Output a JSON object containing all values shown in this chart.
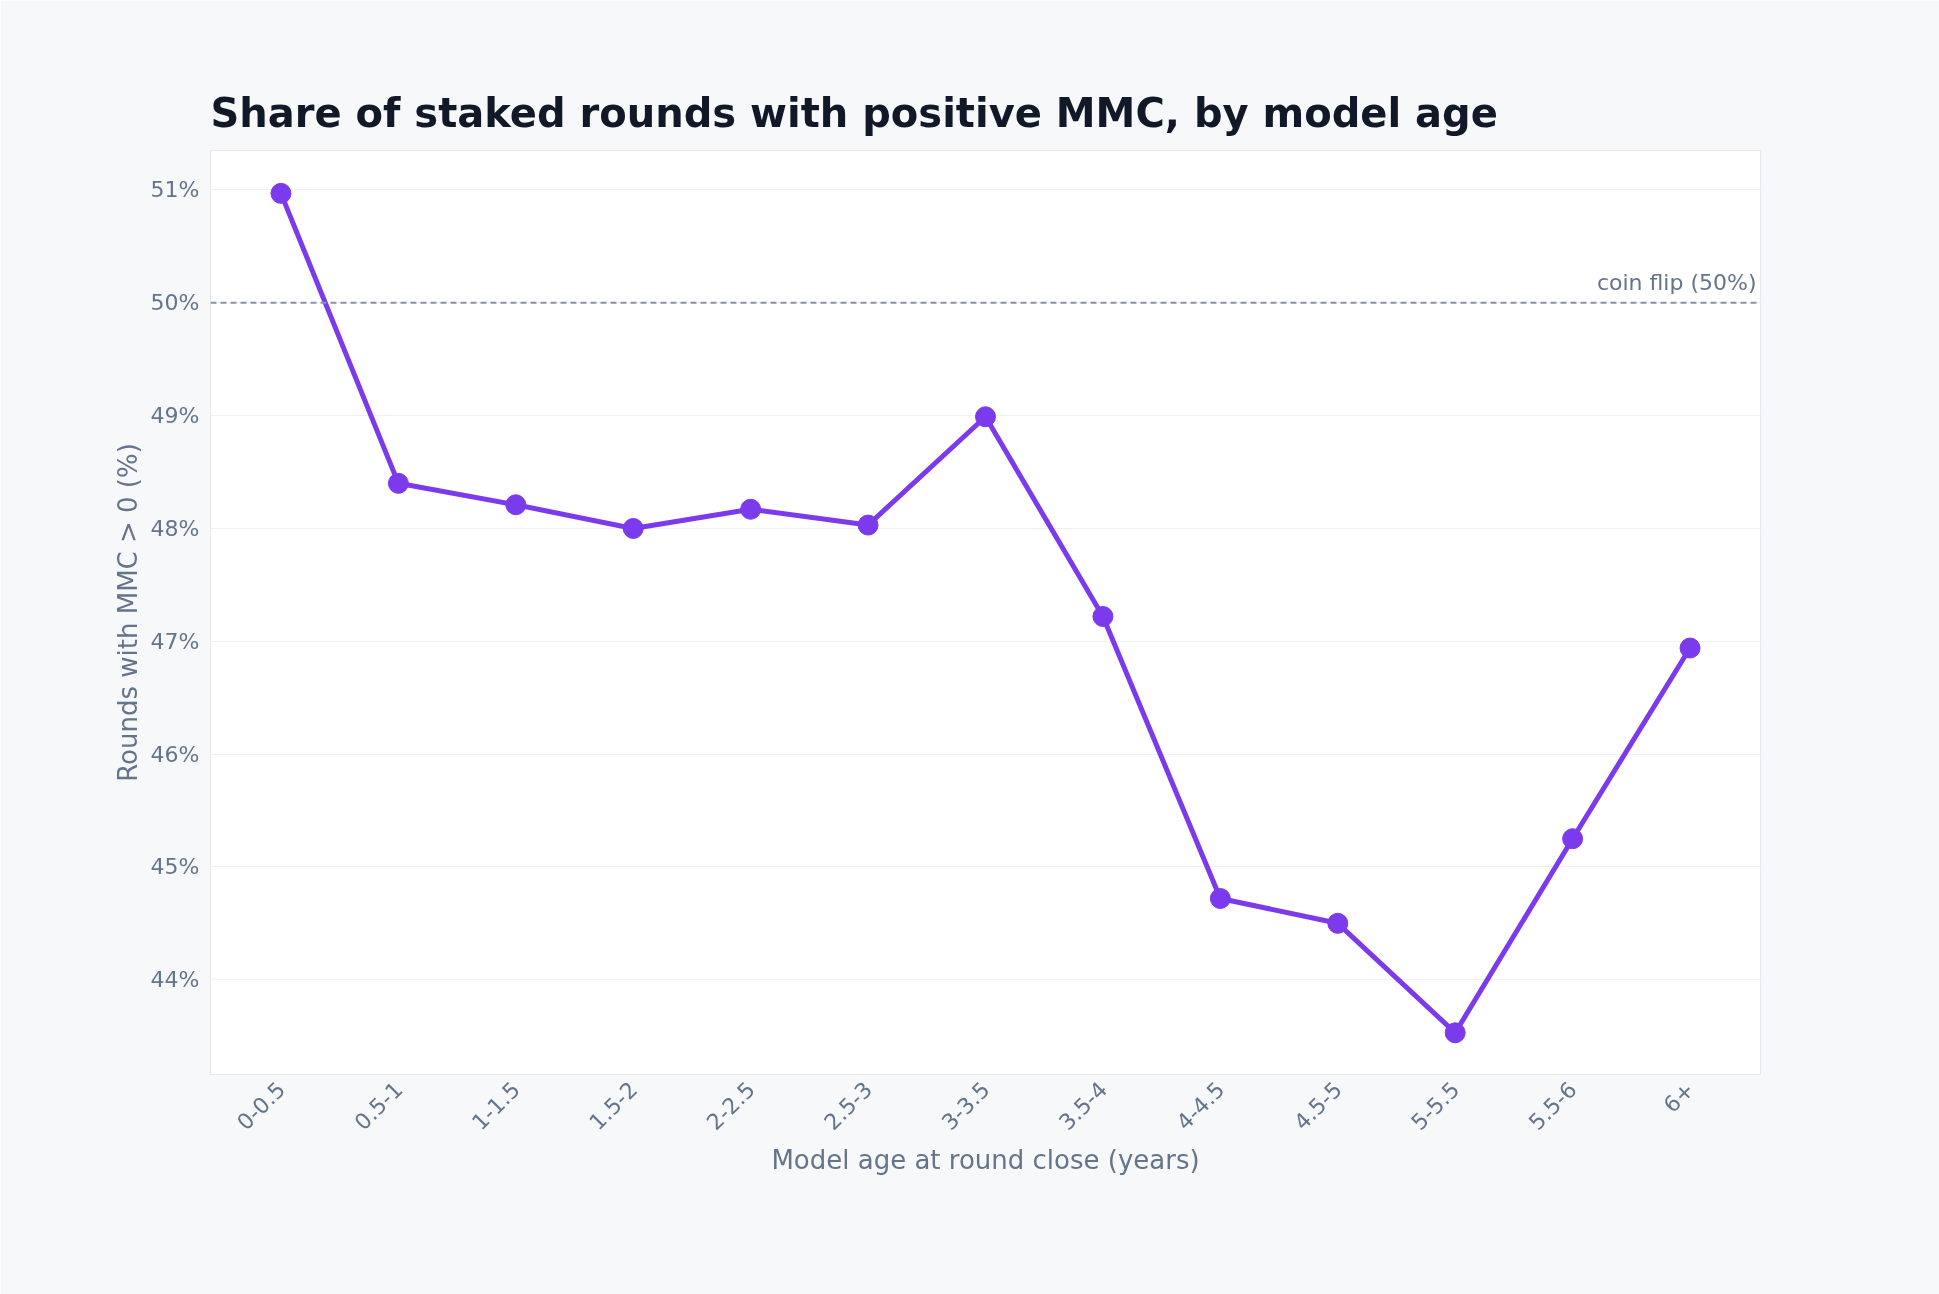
{
  "chart_data": {
    "type": "line",
    "title": "Share of staked rounds with positive MMC, by model age",
    "xlabel": "Model age at round close (years)",
    "ylabel": "Rounds with MMC > 0 (%)",
    "categories": [
      "0-0.5",
      "0.5-1",
      "1-1.5",
      "1.5-2",
      "2-2.5",
      "2.5-3",
      "3-3.5",
      "3.5-4",
      "4-4.5",
      "4.5-5",
      "5-5.5",
      "5.5-6",
      "6+"
    ],
    "series": [
      {
        "color": "#7c3aed",
        "values": [
          50.97,
          48.4,
          48.21,
          48.0,
          48.17,
          48.03,
          48.99,
          47.22,
          44.72,
          44.5,
          43.53,
          45.25,
          46.94
        ]
      }
    ],
    "ylim": [
      43.16,
      51.35
    ],
    "yticks": [
      {
        "value": 44,
        "label": "44%"
      },
      {
        "value": 45,
        "label": "45%"
      },
      {
        "value": 46,
        "label": "46%"
      },
      {
        "value": 47,
        "label": "47%"
      },
      {
        "value": 48,
        "label": "48%"
      },
      {
        "value": 49,
        "label": "49%"
      },
      {
        "value": 50,
        "label": "50%"
      },
      {
        "value": 51,
        "label": "51%"
      }
    ],
    "ref_lines": [
      {
        "axis": "y",
        "value": 50,
        "label": "coin flip (50%)",
        "color": "#8792a2",
        "line_style": "dashed"
      }
    ],
    "grid": "y",
    "marker": "circle",
    "line_style": "solid"
  }
}
